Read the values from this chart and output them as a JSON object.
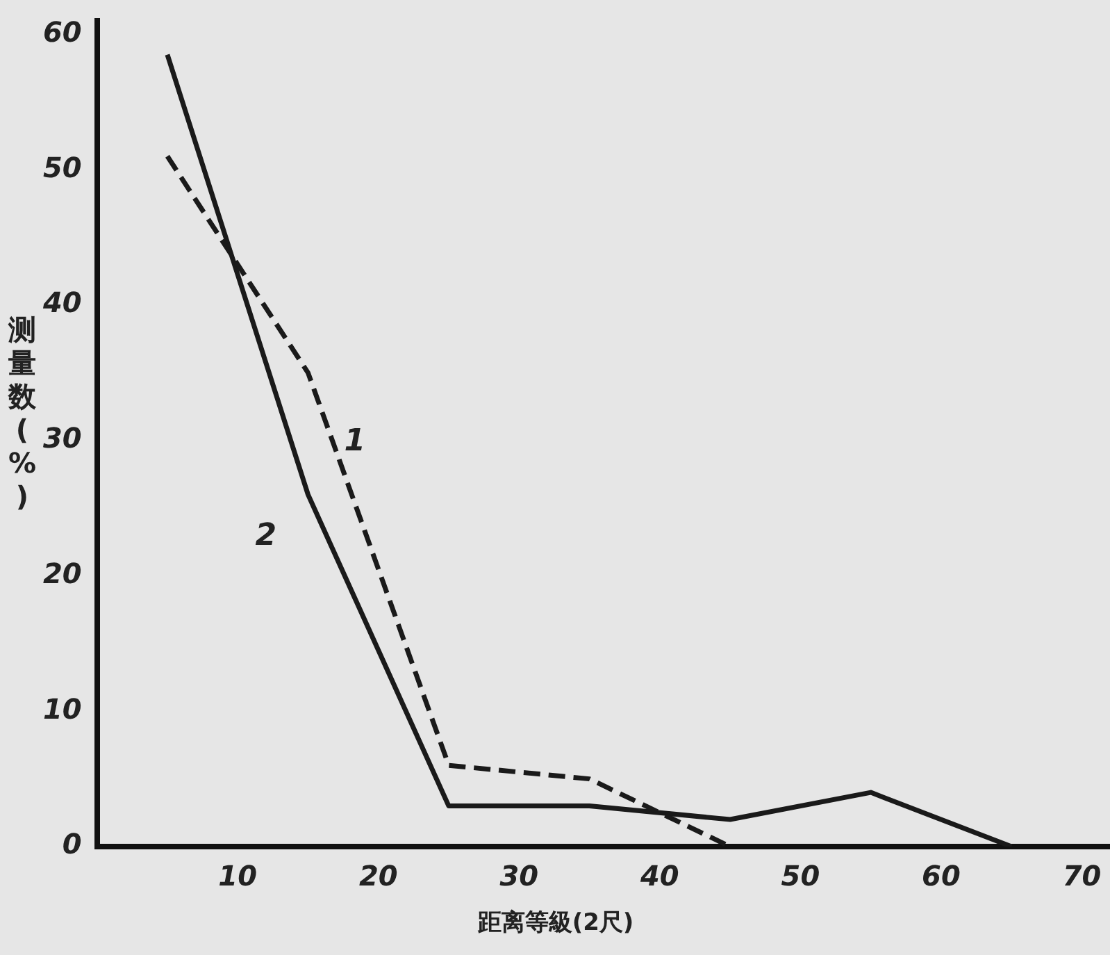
{
  "chart_data": {
    "type": "line",
    "xlabel": "距离等級(2尺)",
    "ylabel": "测量数(%)",
    "x": [
      5,
      15,
      25,
      35,
      45,
      55,
      65
    ],
    "series": [
      {
        "name": "1",
        "color": "#1a1a1a",
        "line_style": "dashed",
        "x": [
          5,
          15,
          25,
          35,
          45
        ],
        "values": [
          51,
          35,
          6,
          5,
          0
        ]
      },
      {
        "name": "2",
        "color": "#1a1a1a",
        "line_style": "solid",
        "values": [
          58.5,
          26,
          3,
          3,
          2,
          4,
          0
        ]
      }
    ],
    "xlim": [
      0,
      72
    ],
    "ylim": [
      0,
      61
    ],
    "xticks": [
      10,
      20,
      30,
      40,
      50,
      60,
      70
    ],
    "yticks": [
      0,
      10,
      20,
      30,
      40,
      50,
      60
    ],
    "grid": false,
    "legend": false,
    "marker": "none"
  }
}
